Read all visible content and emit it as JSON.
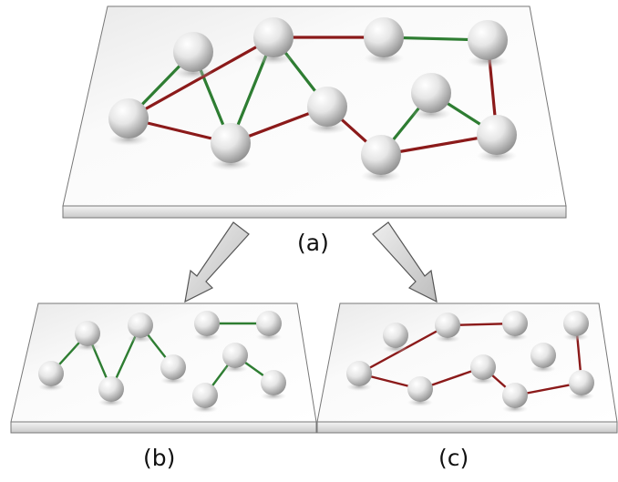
{
  "labels": {
    "a": "(a)",
    "b": "(b)",
    "c": "(c)"
  },
  "colors": {
    "green_edge": "#2e7d32",
    "red_edge": "#8b1a1a",
    "plate_edge": "#777777",
    "arrow_fill": "#d6d6d6",
    "node_highlight": "#ffffff",
    "node_shadow": "#9a9a9a"
  }
}
